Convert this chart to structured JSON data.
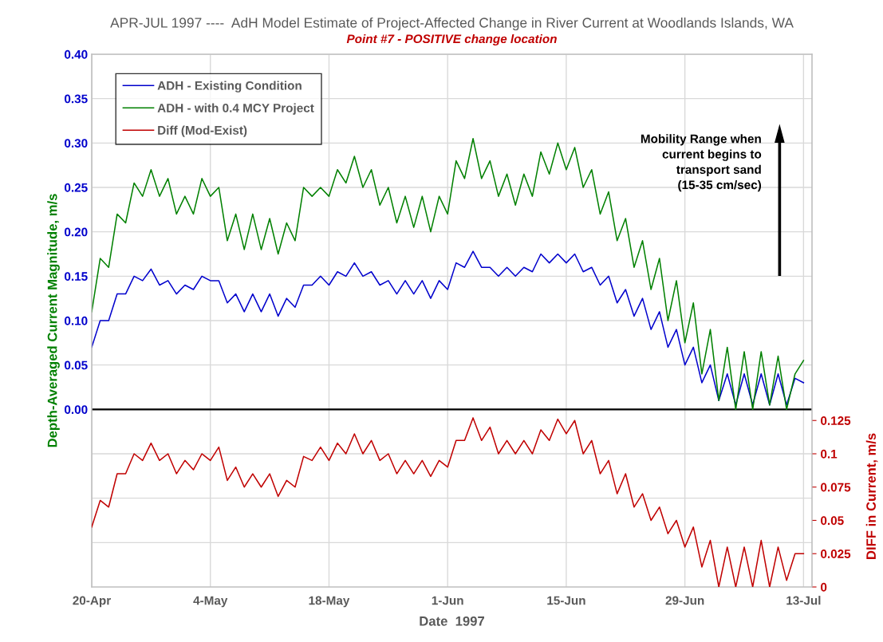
{
  "chart_data": {
    "type": "line",
    "title": "APR-JUL 1997 ----  AdH Model Estimate of Project-Affected Change in River Current at Woodlands Islands, WA",
    "subtitle": "Point #7 - POSITIVE change location",
    "xlabel": "Date  1997",
    "ylabel": "Depth-Averaged Current Magnitude, m/s",
    "y2label": "DIFF in Current, m/s",
    "x": [
      "1997-04-20",
      "1997-04-21",
      "1997-04-22",
      "1997-04-23",
      "1997-04-24",
      "1997-04-25",
      "1997-04-26",
      "1997-04-27",
      "1997-04-28",
      "1997-04-29",
      "1997-04-30",
      "1997-05-01",
      "1997-05-02",
      "1997-05-03",
      "1997-05-04",
      "1997-05-05",
      "1997-05-06",
      "1997-05-07",
      "1997-05-08",
      "1997-05-09",
      "1997-05-10",
      "1997-05-11",
      "1997-05-12",
      "1997-05-13",
      "1997-05-14",
      "1997-05-15",
      "1997-05-16",
      "1997-05-17",
      "1997-05-18",
      "1997-05-19",
      "1997-05-20",
      "1997-05-21",
      "1997-05-22",
      "1997-05-23",
      "1997-05-24",
      "1997-05-25",
      "1997-05-26",
      "1997-05-27",
      "1997-05-28",
      "1997-05-29",
      "1997-05-30",
      "1997-05-31",
      "1997-06-01",
      "1997-06-02",
      "1997-06-03",
      "1997-06-04",
      "1997-06-05",
      "1997-06-06",
      "1997-06-07",
      "1997-06-08",
      "1997-06-09",
      "1997-06-10",
      "1997-06-11",
      "1997-06-12",
      "1997-06-13",
      "1997-06-14",
      "1997-06-15",
      "1997-06-16",
      "1997-06-17",
      "1997-06-18",
      "1997-06-19",
      "1997-06-20",
      "1997-06-21",
      "1997-06-22",
      "1997-06-23",
      "1997-06-24",
      "1997-06-25",
      "1997-06-26",
      "1997-06-27",
      "1997-06-28",
      "1997-06-29",
      "1997-06-30",
      "1997-07-01",
      "1997-07-02",
      "1997-07-03",
      "1997-07-04",
      "1997-07-05",
      "1997-07-06",
      "1997-07-07",
      "1997-07-08",
      "1997-07-09",
      "1997-07-10",
      "1997-07-11",
      "1997-07-12",
      "1997-07-13"
    ],
    "series": [
      {
        "name": "ADH - Existing Condition",
        "color": "#0000cc",
        "values": [
          0.07,
          0.1,
          0.1,
          0.13,
          0.13,
          0.15,
          0.145,
          0.158,
          0.14,
          0.145,
          0.13,
          0.14,
          0.135,
          0.15,
          0.145,
          0.145,
          0.12,
          0.13,
          0.11,
          0.13,
          0.11,
          0.13,
          0.105,
          0.125,
          0.115,
          0.14,
          0.14,
          0.15,
          0.14,
          0.155,
          0.15,
          0.165,
          0.15,
          0.155,
          0.14,
          0.145,
          0.13,
          0.145,
          0.13,
          0.145,
          0.125,
          0.145,
          0.135,
          0.165,
          0.16,
          0.178,
          0.16,
          0.16,
          0.15,
          0.16,
          0.15,
          0.16,
          0.155,
          0.175,
          0.165,
          0.175,
          0.165,
          0.175,
          0.155,
          0.16,
          0.14,
          0.15,
          0.12,
          0.135,
          0.105,
          0.125,
          0.09,
          0.11,
          0.07,
          0.09,
          0.05,
          0.07,
          0.03,
          0.05,
          0.01,
          0.04,
          0.005,
          0.04,
          0.005,
          0.04,
          0.005,
          0.04,
          0.005,
          0.035,
          0.03
        ]
      },
      {
        "name": "ADH - with 0.4 MCY Project",
        "color": "#008000",
        "values": [
          0.11,
          0.17,
          0.16,
          0.22,
          0.21,
          0.255,
          0.24,
          0.27,
          0.24,
          0.26,
          0.22,
          0.24,
          0.22,
          0.26,
          0.24,
          0.25,
          0.19,
          0.22,
          0.18,
          0.22,
          0.18,
          0.215,
          0.175,
          0.21,
          0.19,
          0.25,
          0.24,
          0.25,
          0.24,
          0.27,
          0.255,
          0.285,
          0.25,
          0.27,
          0.23,
          0.25,
          0.21,
          0.24,
          0.205,
          0.24,
          0.2,
          0.24,
          0.22,
          0.28,
          0.26,
          0.305,
          0.26,
          0.28,
          0.24,
          0.265,
          0.23,
          0.265,
          0.24,
          0.29,
          0.265,
          0.3,
          0.27,
          0.295,
          0.25,
          0.27,
          0.22,
          0.245,
          0.19,
          0.215,
          0.16,
          0.19,
          0.135,
          0.17,
          0.1,
          0.145,
          0.075,
          0.12,
          0.04,
          0.09,
          0.01,
          0.07,
          0.0,
          0.065,
          0.0,
          0.065,
          0.005,
          0.06,
          0.0,
          0.04,
          0.055
        ]
      },
      {
        "name": "Diff (Mod-Exist)",
        "color": "#c00000",
        "axis": "y2",
        "values": [
          0.045,
          0.065,
          0.06,
          0.085,
          0.085,
          0.1,
          0.095,
          0.108,
          0.095,
          0.1,
          0.085,
          0.095,
          0.088,
          0.1,
          0.095,
          0.105,
          0.08,
          0.09,
          0.075,
          0.085,
          0.075,
          0.085,
          0.068,
          0.08,
          0.075,
          0.098,
          0.095,
          0.105,
          0.095,
          0.108,
          0.1,
          0.115,
          0.1,
          0.11,
          0.095,
          0.1,
          0.085,
          0.095,
          0.085,
          0.095,
          0.083,
          0.095,
          0.09,
          0.11,
          0.11,
          0.127,
          0.11,
          0.12,
          0.1,
          0.11,
          0.1,
          0.11,
          0.1,
          0.118,
          0.11,
          0.126,
          0.115,
          0.125,
          0.1,
          0.11,
          0.085,
          0.095,
          0.07,
          0.085,
          0.06,
          0.07,
          0.05,
          0.06,
          0.04,
          0.05,
          0.03,
          0.045,
          0.015,
          0.035,
          0.0,
          0.03,
          0.0,
          0.03,
          0.0,
          0.035,
          0.0,
          0.03,
          0.005,
          0.025,
          0.025
        ]
      }
    ],
    "xlim": [
      "1997-04-20",
      "1997-07-14"
    ],
    "xticks": [
      {
        "value": "1997-04-20",
        "label": "20-Apr"
      },
      {
        "value": "1997-05-04",
        "label": "4-May"
      },
      {
        "value": "1997-05-18",
        "label": "18-May"
      },
      {
        "value": "1997-06-01",
        "label": "1-Jun"
      },
      {
        "value": "1997-06-15",
        "label": "15-Jun"
      },
      {
        "value": "1997-06-29",
        "label": "29-Jun"
      },
      {
        "value": "1997-07-13",
        "label": "13-Jul"
      }
    ],
    "ylim": [
      -0.2,
      0.4
    ],
    "yticks": [
      {
        "value": -0.15,
        "label": null
      },
      {
        "value": -0.1,
        "label": null
      },
      {
        "value": -0.05,
        "label": null
      },
      {
        "value": 0,
        "label": "0.00"
      },
      {
        "value": 0.05,
        "label": "0.05"
      },
      {
        "value": 0.1,
        "label": "0.10"
      },
      {
        "value": 0.15,
        "label": "0.15"
      },
      {
        "value": 0.2,
        "label": "0.20"
      },
      {
        "value": 0.25,
        "label": "0.25"
      },
      {
        "value": 0.3,
        "label": "0.30"
      },
      {
        "value": 0.35,
        "label": "0.35"
      },
      {
        "value": 0.4,
        "label": "0.40"
      }
    ],
    "y2lim": [
      0,
      0.4
    ],
    "y2ticks": [
      0,
      0.025,
      0.05,
      0.075,
      0.1,
      0.125
    ],
    "ref_lines": [
      {
        "axis": "y",
        "value": 0,
        "color": "#000000"
      }
    ],
    "annotations": [
      "Mobility Range when\ncurrent begins to\ntransport sand\n(15-35 cm/sec)"
    ],
    "grid": true,
    "legend": "top left",
    "marker": "none",
    "line_style": "solid"
  }
}
